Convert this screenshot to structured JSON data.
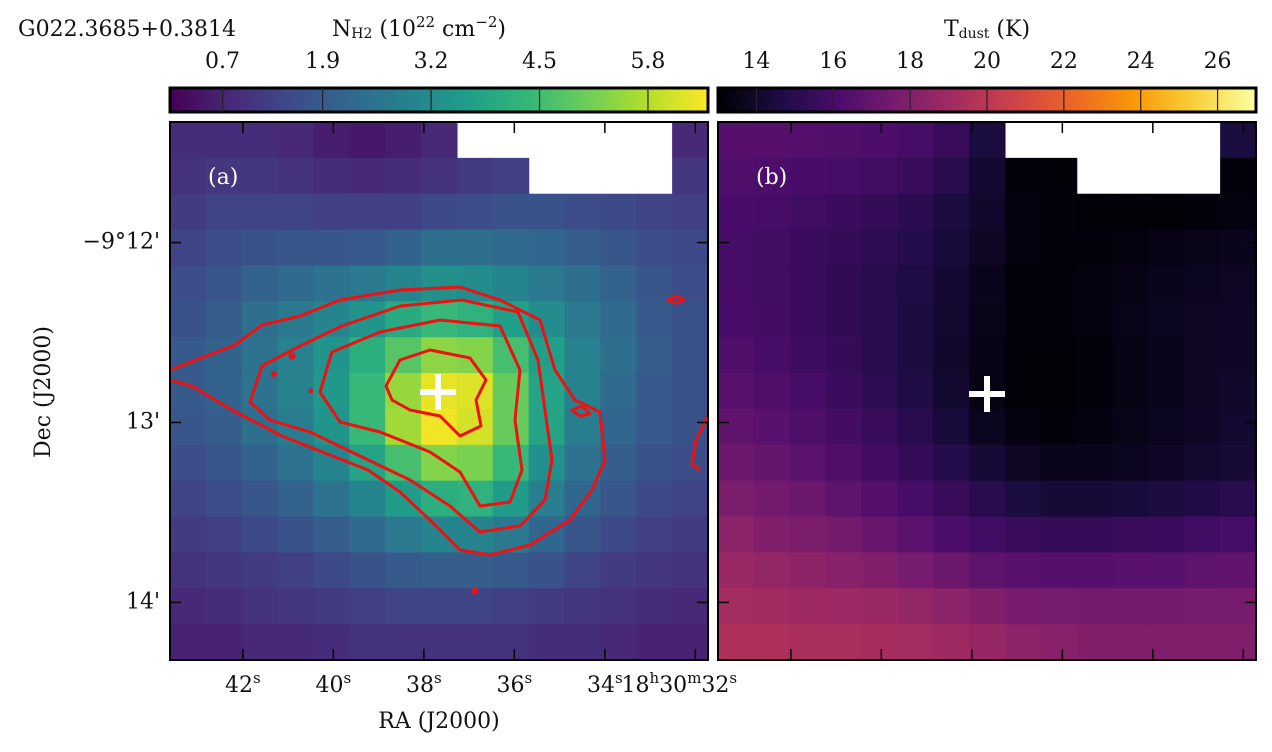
{
  "chart_data": [
    {
      "type": "heatmap",
      "title": "G022.3685+0.3814",
      "panel_label": "(a)",
      "xlabel": "RA (J2000)",
      "ylabel": "Dec (J2000)",
      "xlim": [
        43.61,
        31.72
      ],
      "ylim": [
        11.33,
        14.32
      ],
      "xticks": [
        {
          "value": 42,
          "label": [
            {
              "text": "42"
            },
            {
              "sup": "s"
            }
          ]
        },
        {
          "value": 40,
          "label": [
            {
              "text": "40"
            },
            {
              "sup": "s"
            }
          ]
        },
        {
          "value": 38,
          "label": [
            {
              "text": "38"
            },
            {
              "sup": "s"
            }
          ]
        },
        {
          "value": 36,
          "label": [
            {
              "text": "36"
            },
            {
              "sup": "s"
            }
          ]
        },
        {
          "value": 34,
          "label": [
            {
              "text": "34"
            },
            {
              "sup": "s"
            }
          ]
        },
        {
          "value": 32,
          "label": [
            {
              "text": "18"
            },
            {
              "sup": "h"
            },
            {
              "text": "30"
            },
            {
              "sup": "m"
            },
            {
              "text": "32"
            },
            {
              "sup": "s"
            }
          ]
        }
      ],
      "yticks": [
        {
          "value": 12,
          "label": "−9°12'"
        },
        {
          "value": 13,
          "label": "13'"
        },
        {
          "value": 14,
          "label": "14'"
        }
      ],
      "colorbar": {
        "label": [
          {
            "text": "N"
          },
          {
            "sub": "H2"
          },
          {
            "text": " (10"
          },
          {
            "sup": "22"
          },
          {
            "text": " cm"
          },
          {
            "sup": "−2"
          },
          {
            "text": ")"
          }
        ],
        "lim": [
          0.07,
          6.52
        ],
        "ticks": [
          0.7,
          1.9,
          3.2,
          4.5,
          5.8
        ]
      },
      "colormap": [
        "#440154",
        "#482878",
        "#3e4989",
        "#31688e",
        "#26828e",
        "#1f9e89",
        "#35b779",
        "#6ece58",
        "#b5de2b",
        "#fde725"
      ],
      "values": [
        [
          0.9,
          0.9,
          0.9,
          0.8,
          0.6,
          0.5,
          0.6,
          0.8,
          null,
          null,
          null,
          null,
          null,
          null,
          0.8
        ],
        [
          1.0,
          1.1,
          1.1,
          1.0,
          0.9,
          0.8,
          0.9,
          1.0,
          1.2,
          1.3,
          null,
          null,
          null,
          null,
          1.1
        ],
        [
          1.2,
          1.4,
          1.4,
          1.4,
          1.3,
          1.3,
          1.3,
          1.5,
          1.6,
          1.7,
          1.7,
          1.6,
          1.5,
          1.4,
          1.3
        ],
        [
          1.4,
          1.6,
          1.7,
          1.8,
          1.8,
          1.9,
          2.1,
          2.4,
          2.4,
          2.3,
          2.2,
          2.0,
          1.8,
          1.6,
          1.5
        ],
        [
          1.6,
          1.8,
          2.1,
          2.3,
          2.5,
          2.7,
          3.0,
          3.3,
          3.2,
          3.0,
          2.7,
          2.4,
          2.1,
          1.8,
          1.6
        ],
        [
          1.7,
          2.0,
          2.4,
          2.7,
          3.0,
          3.4,
          4.0,
          4.4,
          4.2,
          3.7,
          3.2,
          2.7,
          2.3,
          1.9,
          1.7
        ],
        [
          1.9,
          2.1,
          2.5,
          2.9,
          3.4,
          4.1,
          4.8,
          5.4,
          5.3,
          4.6,
          3.7,
          2.9,
          2.4,
          2.0,
          1.7
        ],
        [
          1.9,
          2.1,
          2.5,
          2.9,
          3.5,
          4.4,
          5.5,
          6.3,
          6.2,
          5.0,
          3.8,
          2.9,
          2.3,
          1.9,
          1.7
        ],
        [
          1.8,
          2.0,
          2.4,
          2.8,
          3.4,
          4.4,
          5.6,
          6.4,
          6.1,
          5.0,
          3.8,
          2.8,
          2.2,
          1.9,
          1.7
        ],
        [
          1.6,
          1.8,
          2.1,
          2.5,
          3.0,
          3.8,
          4.6,
          5.3,
          5.2,
          4.4,
          3.3,
          2.5,
          2.0,
          1.7,
          1.6
        ],
        [
          1.4,
          1.6,
          1.8,
          2.1,
          2.5,
          3.0,
          3.6,
          4.1,
          4.2,
          3.6,
          2.8,
          2.2,
          1.8,
          1.5,
          1.4
        ],
        [
          1.2,
          1.3,
          1.5,
          1.7,
          2.0,
          2.3,
          2.7,
          3.0,
          3.0,
          2.7,
          2.2,
          1.8,
          1.5,
          1.3,
          1.2
        ],
        [
          1.0,
          1.1,
          1.2,
          1.3,
          1.5,
          1.7,
          1.9,
          2.0,
          2.0,
          1.9,
          1.7,
          1.4,
          1.2,
          1.1,
          1.0
        ],
        [
          0.8,
          0.9,
          1.0,
          1.1,
          1.2,
          1.3,
          1.4,
          1.4,
          1.4,
          1.3,
          1.2,
          1.1,
          1.0,
          0.9,
          0.8
        ],
        [
          0.7,
          0.7,
          0.8,
          0.8,
          0.9,
          1.0,
          1.0,
          1.0,
          1.0,
          1.0,
          0.9,
          0.9,
          0.8,
          0.7,
          0.7
        ]
      ]
    },
    {
      "type": "heatmap",
      "panel_label": "(b)",
      "xlim": [
        43.61,
        31.72
      ],
      "ylim": [
        11.33,
        14.32
      ],
      "colorbar": {
        "label": [
          {
            "text": "T"
          },
          {
            "sub": "dust"
          },
          {
            "text": " (K)"
          }
        ],
        "lim": [
          13.0,
          27.0
        ],
        "ticks": [
          14,
          16,
          18,
          20,
          22,
          24,
          26
        ]
      },
      "colormap": [
        "#000004",
        "#1b0c41",
        "#4a0c6b",
        "#781c6d",
        "#a52c60",
        "#cf4446",
        "#ed6925",
        "#fb9b06",
        "#f7d13d",
        "#fcffa4"
      ],
      "values": [
        [
          16.5,
          16.5,
          16.4,
          16.3,
          16.2,
          16.0,
          15.5,
          14.5,
          null,
          null,
          null,
          null,
          null,
          null,
          14.5
        ],
        [
          16.3,
          16.2,
          16.1,
          16.0,
          15.8,
          15.5,
          15.0,
          14.2,
          13.2,
          13.1,
          null,
          null,
          null,
          null,
          13.2
        ],
        [
          16.1,
          16.0,
          15.8,
          15.6,
          15.4,
          15.1,
          14.6,
          14.0,
          13.3,
          13.2,
          13.1,
          13.1,
          13.1,
          13.2,
          13.3
        ],
        [
          16.0,
          15.8,
          15.6,
          15.4,
          15.2,
          14.9,
          14.4,
          13.8,
          13.3,
          13.2,
          13.2,
          13.3,
          13.4,
          13.5,
          13.6
        ],
        [
          16.0,
          15.8,
          15.6,
          15.3,
          15.0,
          14.7,
          14.2,
          13.6,
          13.2,
          13.2,
          13.3,
          13.4,
          13.6,
          13.7,
          13.8
        ],
        [
          16.1,
          15.9,
          15.6,
          15.3,
          15.0,
          14.6,
          14.1,
          13.5,
          13.2,
          13.2,
          13.3,
          13.5,
          13.7,
          13.8,
          13.9
        ],
        [
          16.3,
          16.0,
          15.7,
          15.4,
          15.0,
          14.6,
          14.0,
          13.4,
          13.1,
          13.1,
          13.2,
          13.4,
          13.6,
          13.8,
          13.9
        ],
        [
          16.6,
          16.3,
          16.0,
          15.6,
          15.2,
          14.7,
          14.1,
          13.4,
          13.1,
          13.1,
          13.2,
          13.4,
          13.6,
          13.8,
          14.0
        ],
        [
          16.9,
          16.6,
          16.3,
          15.9,
          15.5,
          15.0,
          14.4,
          13.7,
          13.3,
          13.2,
          13.3,
          13.5,
          13.7,
          13.9,
          14.1
        ],
        [
          17.3,
          17.0,
          16.7,
          16.3,
          15.9,
          15.4,
          14.9,
          14.3,
          13.8,
          13.6,
          13.6,
          13.7,
          13.9,
          14.1,
          14.3
        ],
        [
          17.8,
          17.5,
          17.2,
          16.8,
          16.4,
          16.0,
          15.5,
          15.0,
          14.5,
          14.3,
          14.3,
          14.4,
          14.6,
          14.8,
          15.0
        ],
        [
          18.3,
          18.0,
          17.8,
          17.5,
          17.1,
          16.7,
          16.2,
          15.8,
          15.5,
          15.4,
          15.4,
          15.5,
          15.6,
          15.8,
          16.0
        ],
        [
          18.8,
          18.6,
          18.4,
          18.2,
          18.0,
          17.6,
          17.2,
          16.8,
          16.6,
          16.5,
          16.5,
          16.6,
          16.6,
          16.8,
          16.9
        ],
        [
          19.2,
          19.1,
          19.0,
          18.9,
          18.8,
          18.6,
          18.3,
          18.0,
          17.7,
          17.6,
          17.5,
          17.5,
          17.5,
          17.6,
          17.6
        ],
        [
          19.5,
          19.5,
          19.4,
          19.4,
          19.3,
          19.2,
          19.0,
          18.7,
          18.4,
          18.2,
          18.0,
          17.9,
          17.9,
          17.9,
          17.9
        ]
      ]
    }
  ]
}
